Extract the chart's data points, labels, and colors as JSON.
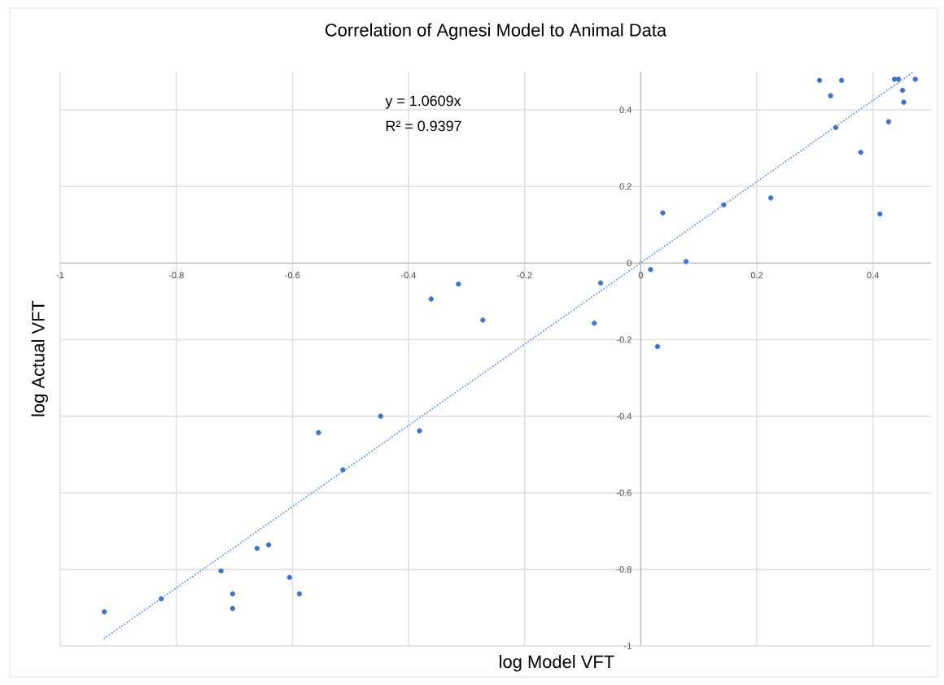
{
  "chart_data": {
    "type": "scatter",
    "title": "Correlation of Agnesi Model to Animal Data",
    "xlabel": "log Model VFT",
    "ylabel": "log Actual VFT",
    "annotations": [
      "y = 1.0609x",
      "R² = 0.9397"
    ],
    "xlim": [
      -1,
      0.5
    ],
    "ylim": [
      -1,
      0.5
    ],
    "xticks": [
      -1,
      -0.8,
      -0.6,
      -0.4,
      -0.2,
      0,
      0.2,
      0.4
    ],
    "yticks": [
      -1,
      -0.8,
      -0.6,
      -0.4,
      -0.2,
      0,
      0.2,
      0.4
    ],
    "grid": true,
    "series": [
      {
        "color": "#4472c4",
        "marker": "circle",
        "x": [
          -0.924,
          -0.826,
          -0.723,
          -0.703,
          -0.703,
          -0.661,
          -0.641,
          -0.605,
          -0.588,
          -0.555,
          -0.513,
          -0.448,
          -0.381,
          -0.361,
          -0.314,
          -0.272,
          -0.08,
          -0.069,
          0.017,
          0.029,
          0.038,
          0.078,
          0.143,
          0.224,
          0.308,
          0.327,
          0.336,
          0.346,
          0.379,
          0.412,
          0.427,
          0.437,
          0.444,
          0.451,
          0.453,
          0.473
        ],
        "values": [
          -0.911,
          -0.877,
          -0.804,
          -0.864,
          -0.902,
          -0.745,
          -0.736,
          -0.821,
          -0.864,
          -0.443,
          -0.54,
          -0.4,
          -0.438,
          -0.094,
          -0.055,
          -0.149,
          -0.157,
          -0.052,
          -0.017,
          -0.218,
          0.131,
          0.004,
          0.152,
          0.17,
          0.477,
          0.437,
          0.354,
          0.477,
          0.289,
          0.128,
          0.369,
          0.48,
          0.48,
          0.451,
          0.42,
          0.48
        ]
      },
      {
        "type": "line",
        "color": "#6f9be0",
        "line_style": "dotted",
        "marker": "none",
        "x": [
          -0.925,
          0.471
        ],
        "values": [
          -0.981,
          0.5
        ]
      }
    ]
  }
}
